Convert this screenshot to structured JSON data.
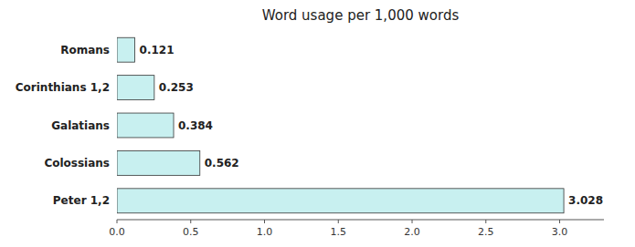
{
  "chart_data": {
    "type": "bar",
    "orientation": "horizontal",
    "title": "Word usage per 1,000 words",
    "categories": [
      "Peter 1,2",
      "Colossians",
      "Galatians",
      "Corinthians 1,2",
      "Romans"
    ],
    "values": [
      3.028,
      0.562,
      0.384,
      0.253,
      0.121
    ],
    "color": "#c8f0f0",
    "xlim": [
      0,
      3.3
    ],
    "xticks": [
      {
        "value": 0.0,
        "label": "0.0"
      },
      0.5,
      {
        "value": 1.0,
        "label": "1.0"
      },
      1.5,
      {
        "value": 2.0,
        "label": "2.0"
      },
      2.5,
      {
        "value": 3.0,
        "label": "3.0"
      }
    ],
    "data_labels": true
  }
}
